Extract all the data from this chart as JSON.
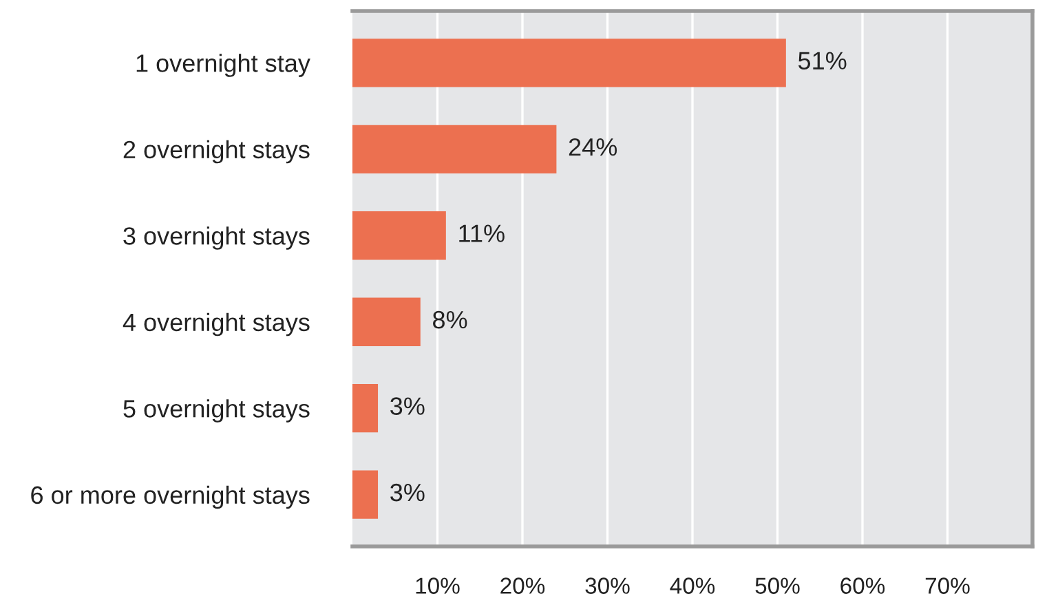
{
  "chart_data": {
    "type": "bar",
    "orientation": "horizontal",
    "categories": [
      "1 overnight stay",
      "2 overnight stays",
      "3 overnight stays",
      "4 overnight stays",
      "5 overnight stays",
      "6 or more overnight stays"
    ],
    "values": [
      51,
      24,
      11,
      8,
      3,
      3
    ],
    "value_labels": [
      "51%",
      "24%",
      "11%",
      "8%",
      "3%",
      "3%"
    ],
    "color": "#ec7050",
    "xlim": [
      0,
      80
    ],
    "xticks": [
      {
        "value": 10,
        "label": "10%"
      },
      {
        "value": 20,
        "label": "20%"
      },
      {
        "value": 30,
        "label": "30%"
      },
      {
        "value": 40,
        "label": "40%"
      },
      {
        "value": 50,
        "label": "50%"
      },
      {
        "value": 60,
        "label": "60%"
      },
      {
        "value": 70,
        "label": "70%"
      }
    ],
    "grid": "x",
    "legend": false
  }
}
